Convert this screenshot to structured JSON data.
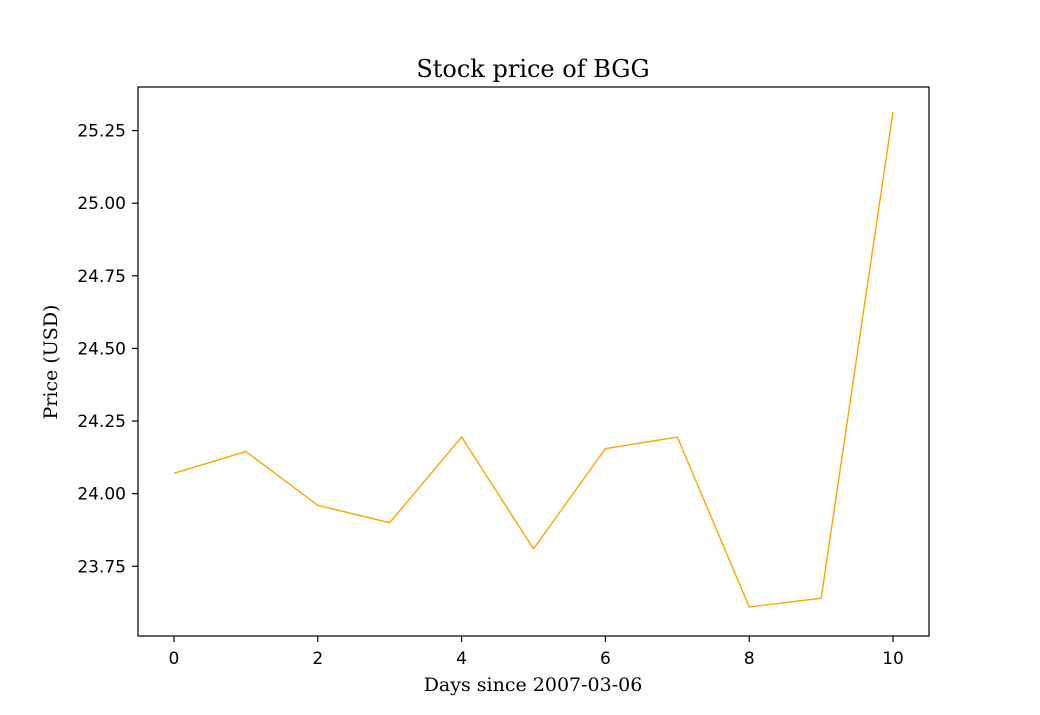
{
  "chart_data": {
    "type": "line",
    "title": "Stock price of BGG",
    "xlabel": "Days since 2007-03-06",
    "ylabel": "Price (USD)",
    "x": [
      0,
      1,
      2,
      3,
      4,
      5,
      6,
      7,
      8,
      9,
      10
    ],
    "series": [
      {
        "values": [
          24.07,
          24.145,
          23.96,
          23.9,
          24.195,
          23.81,
          24.155,
          24.195,
          23.61,
          23.64,
          25.315
        ],
        "color": "#ffa500"
      }
    ],
    "xlim": [
      -0.5,
      10.5
    ],
    "ylim": [
      23.51,
      25.4
    ],
    "xticks": [
      0,
      2,
      4,
      6,
      8,
      10
    ],
    "xtick_labels": [
      "0",
      "2",
      "4",
      "6",
      "8",
      "10"
    ],
    "yticks": [
      23.75,
      24.0,
      24.25,
      24.5,
      24.75,
      25.0,
      25.25
    ],
    "ytick_labels": [
      "23.75",
      "24.00",
      "24.25",
      "24.50",
      "24.75",
      "25.00",
      "25.25"
    ],
    "grid": false,
    "legend": false
  }
}
